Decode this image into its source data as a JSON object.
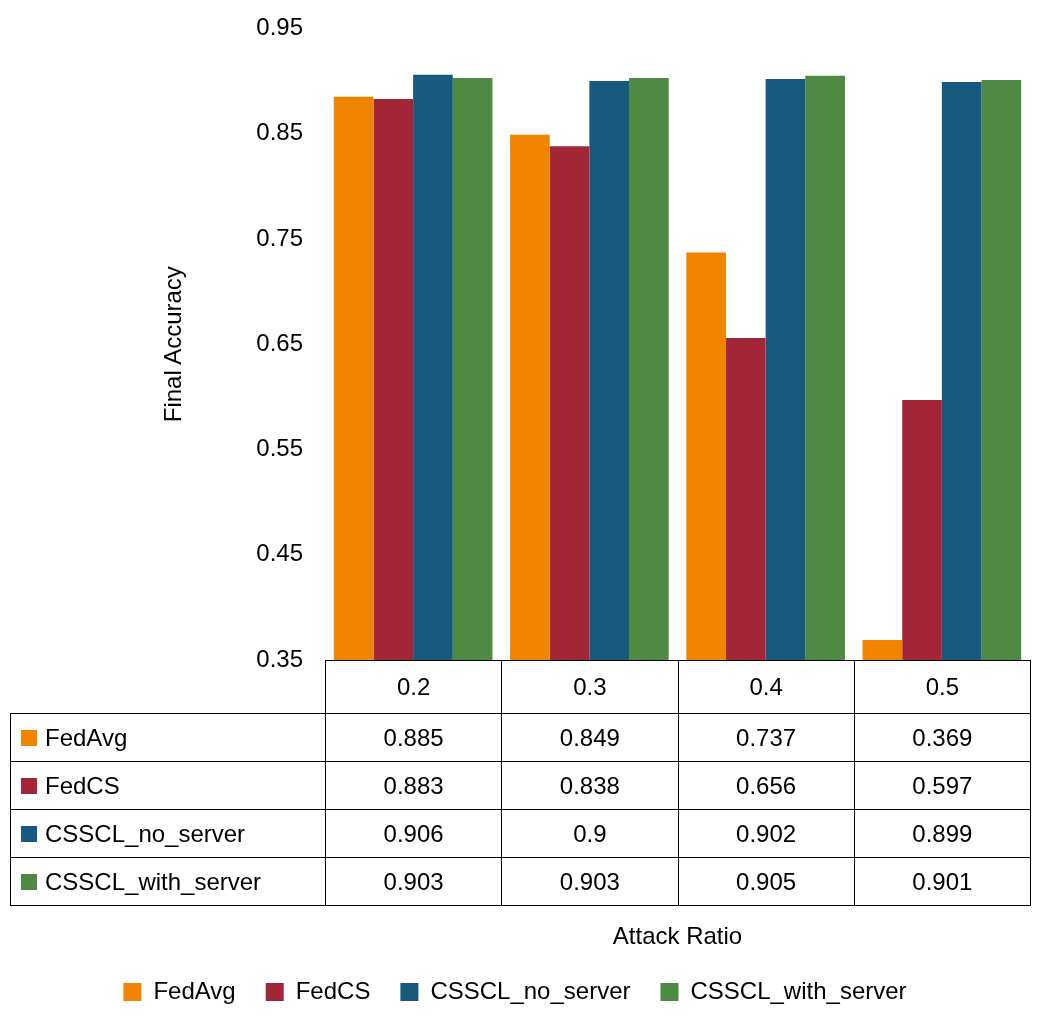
{
  "chart_data": {
    "type": "bar",
    "ylabel": "Final Accuracy",
    "annotations": [
      "Attack Ratio"
    ],
    "categories": [
      "0.2",
      "0.3",
      "0.4",
      "0.5"
    ],
    "series": [
      {
        "name": "FedAvg",
        "color": "#f08400",
        "values": [
          0.885,
          0.849,
          0.737,
          0.369
        ]
      },
      {
        "name": "FedCS",
        "color": "#a32638",
        "values": [
          0.883,
          0.838,
          0.656,
          0.597
        ]
      },
      {
        "name": "CSSCL_no_server",
        "color": "#175a7e",
        "values": [
          0.906,
          0.9,
          0.902,
          0.899
        ]
      },
      {
        "name": "CSSCL_with_server",
        "color": "#4e8a43",
        "values": [
          0.903,
          0.903,
          0.905,
          0.901
        ]
      }
    ],
    "ylim": [
      0.35,
      0.95
    ],
    "yticks": [
      0.35,
      0.45,
      0.55,
      0.65,
      0.75,
      0.85,
      0.95
    ],
    "data_labels": true,
    "legend": "bottom"
  }
}
